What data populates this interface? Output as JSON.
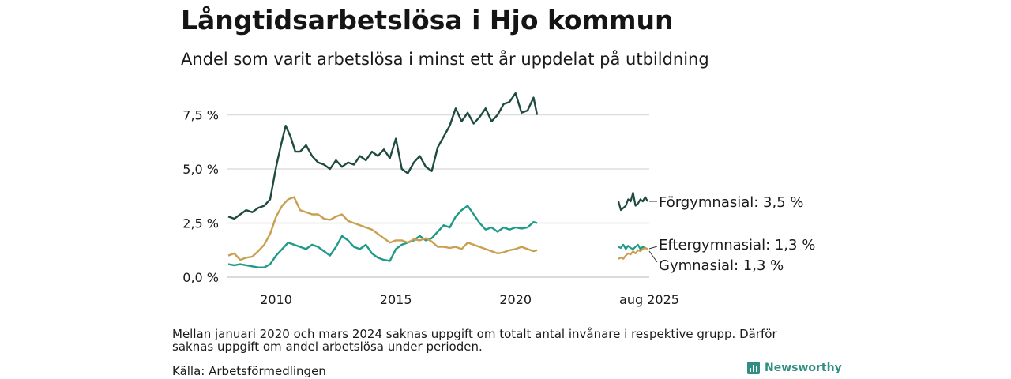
{
  "title": "Långtidsarbetslösa i Hjo kommun",
  "subtitle": "Andel som varit arbetslösa i minst ett år uppdelat på utbildning",
  "note": "Mellan januari 2020 och mars 2024 saknas uppgift om totalt antal invånare i respektive grupp. Därför saknas uppgift om andel arbetslösa under perioden.",
  "source": "Källa: Arbetsförmedlingen",
  "brand": "Newsworthy",
  "colors": {
    "forgymnasial": "#1f4a40",
    "eftergymnasial": "#1f9a87",
    "gymnasial": "#c9a050",
    "grid": "#dddddd",
    "brand": "#2f8f83"
  },
  "chart_data": {
    "type": "line",
    "title": "Långtidsarbetslösa i Hjo kommun",
    "ylim": [
      0,
      8.6
    ],
    "yticks": [
      {
        "value": 0,
        "label": "0,0 %"
      },
      {
        "value": 2.5,
        "label": "2,5 %"
      },
      {
        "value": 5,
        "label": "5,0 %"
      },
      {
        "value": 7.5,
        "label": "7,5 %"
      }
    ],
    "xticks": [
      {
        "value": 2010,
        "label": "2010"
      },
      {
        "value": 2015,
        "label": "2015"
      },
      {
        "value": 2020,
        "label": "2020"
      }
    ],
    "xlim": [
      2008.0,
      2020.9
    ],
    "grid": true,
    "series": [
      {
        "name": "Förgymnasial",
        "key": "forgymnasial",
        "end_label": "Förgymnasial: 3,5 %",
        "x": [
          2008.0,
          2008.25,
          2008.5,
          2008.75,
          2009.0,
          2009.25,
          2009.5,
          2009.75,
          2010.0,
          2010.2,
          2010.4,
          2010.6,
          2010.8,
          2011.0,
          2011.25,
          2011.5,
          2011.75,
          2012.0,
          2012.25,
          2012.5,
          2012.75,
          2013.0,
          2013.25,
          2013.5,
          2013.75,
          2014.0,
          2014.25,
          2014.5,
          2014.75,
          2015.0,
          2015.25,
          2015.5,
          2015.75,
          2016.0,
          2016.25,
          2016.5,
          2016.75,
          2017.0,
          2017.25,
          2017.5,
          2017.75,
          2018.0,
          2018.25,
          2018.5,
          2018.75,
          2019.0,
          2019.25,
          2019.5,
          2019.75,
          2020.0,
          2020.25,
          2020.5,
          2020.75,
          2020.9
        ],
        "values": [
          2.8,
          2.7,
          2.9,
          3.1,
          3.0,
          3.2,
          3.3,
          3.6,
          5.1,
          6.1,
          7.0,
          6.5,
          5.8,
          5.8,
          6.1,
          5.6,
          5.3,
          5.2,
          5.0,
          5.4,
          5.1,
          5.3,
          5.2,
          5.6,
          5.4,
          5.8,
          5.6,
          5.9,
          5.5,
          6.4,
          5.0,
          4.8,
          5.3,
          5.6,
          5.1,
          4.9,
          6.0,
          6.5,
          7.0,
          7.8,
          7.2,
          7.6,
          7.1,
          7.4,
          7.8,
          7.2,
          7.5,
          8.0,
          8.1,
          8.5,
          7.6,
          7.7,
          8.3,
          7.5
        ]
      },
      {
        "name": "Eftergymnasial",
        "key": "eftergymnasial",
        "end_label": "Eftergymnasial: 1,3 %",
        "x": [
          2008.0,
          2008.25,
          2008.5,
          2008.75,
          2009.0,
          2009.25,
          2009.5,
          2009.75,
          2010.0,
          2010.25,
          2010.5,
          2010.75,
          2011.0,
          2011.25,
          2011.5,
          2011.75,
          2012.0,
          2012.25,
          2012.5,
          2012.75,
          2013.0,
          2013.25,
          2013.5,
          2013.75,
          2014.0,
          2014.25,
          2014.5,
          2014.75,
          2015.0,
          2015.25,
          2015.5,
          2015.75,
          2016.0,
          2016.25,
          2016.5,
          2016.75,
          2017.0,
          2017.25,
          2017.5,
          2017.75,
          2018.0,
          2018.25,
          2018.5,
          2018.75,
          2019.0,
          2019.25,
          2019.5,
          2019.75,
          2020.0,
          2020.25,
          2020.5,
          2020.75,
          2020.9
        ],
        "values": [
          0.6,
          0.55,
          0.6,
          0.55,
          0.5,
          0.45,
          0.45,
          0.6,
          1.0,
          1.3,
          1.6,
          1.5,
          1.4,
          1.3,
          1.5,
          1.4,
          1.2,
          1.0,
          1.4,
          1.9,
          1.7,
          1.4,
          1.3,
          1.5,
          1.1,
          0.9,
          0.8,
          0.75,
          1.3,
          1.5,
          1.6,
          1.7,
          1.9,
          1.7,
          1.8,
          2.1,
          2.4,
          2.3,
          2.8,
          3.1,
          3.3,
          2.9,
          2.5,
          2.2,
          2.3,
          2.1,
          2.3,
          2.2,
          2.3,
          2.25,
          2.3,
          2.55,
          2.5
        ]
      },
      {
        "name": "Gymnasial",
        "key": "gymnasial",
        "end_label": "Gymnasial: 1,3 %",
        "x": [
          2008.0,
          2008.25,
          2008.5,
          2008.75,
          2009.0,
          2009.25,
          2009.5,
          2009.75,
          2010.0,
          2010.25,
          2010.5,
          2010.75,
          2011.0,
          2011.25,
          2011.5,
          2011.75,
          2012.0,
          2012.25,
          2012.5,
          2012.75,
          2013.0,
          2013.25,
          2013.5,
          2013.75,
          2014.0,
          2014.25,
          2014.5,
          2014.75,
          2015.0,
          2015.25,
          2015.5,
          2015.75,
          2016.0,
          2016.25,
          2016.5,
          2016.75,
          2017.0,
          2017.25,
          2017.5,
          2017.75,
          2018.0,
          2018.25,
          2018.5,
          2018.75,
          2019.0,
          2019.25,
          2019.5,
          2019.75,
          2020.0,
          2020.25,
          2020.5,
          2020.75,
          2020.9
        ],
        "values": [
          1.0,
          1.1,
          0.8,
          0.9,
          0.95,
          1.2,
          1.5,
          2.0,
          2.8,
          3.3,
          3.6,
          3.7,
          3.1,
          3.0,
          2.9,
          2.9,
          2.7,
          2.65,
          2.8,
          2.9,
          2.6,
          2.5,
          2.4,
          2.3,
          2.2,
          2.0,
          1.8,
          1.6,
          1.7,
          1.7,
          1.6,
          1.75,
          1.7,
          1.8,
          1.65,
          1.4,
          1.4,
          1.35,
          1.4,
          1.3,
          1.6,
          1.5,
          1.4,
          1.3,
          1.2,
          1.1,
          1.15,
          1.25,
          1.3,
          1.4,
          1.3,
          1.2,
          1.25
        ]
      }
    ],
    "latest": {
      "label": "aug 2025",
      "series": [
        {
          "key": "forgymnasial",
          "values": [
            3.5,
            3.1,
            3.2,
            3.3,
            3.6,
            3.5,
            3.9,
            3.3,
            3.4,
            3.6,
            3.5,
            3.7,
            3.5
          ]
        },
        {
          "key": "eftergymnasial",
          "values": [
            1.4,
            1.35,
            1.5,
            1.3,
            1.45,
            1.35,
            1.3,
            1.4,
            1.5,
            1.3,
            1.4,
            1.35,
            1.3
          ]
        },
        {
          "key": "gymnasial",
          "values": [
            0.85,
            0.9,
            0.85,
            1.0,
            1.1,
            1.05,
            1.2,
            1.1,
            1.25,
            1.2,
            1.3,
            1.35,
            1.3
          ]
        }
      ]
    }
  }
}
